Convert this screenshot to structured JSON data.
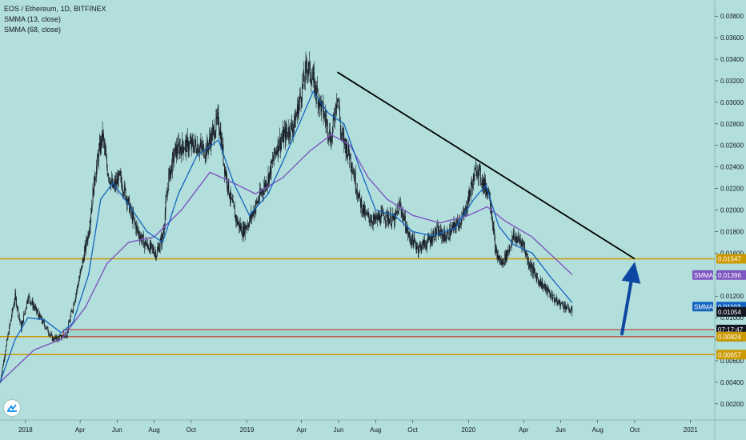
{
  "legend": {
    "title": "EOS / Ethereum, 1D, BITFINEX",
    "ind1": "SMMA (13, close)",
    "ind2": "SMMA (68, close)"
  },
  "colors": {
    "background": "#b2dfdb",
    "candle": "#131722",
    "smma_fast": "#1565c0",
    "smma_slow": "#7e57c2",
    "support": "#cc9900",
    "box_border": "#c62828",
    "trendline": "#000000",
    "arrow": "#0d47a1"
  },
  "chart_data": {
    "type": "candlestick",
    "symbol": "EOS / Ethereum",
    "interval": "1D",
    "exchange": "BITFINEX",
    "y_ticks": [
      "0.03800",
      "0.03600",
      "0.03400",
      "0.03200",
      "0.03000",
      "0.02800",
      "0.02600",
      "0.02400",
      "0.02200",
      "0.02000",
      "0.01800",
      "0.01600",
      "0.01400",
      "0.01200",
      "0.01000",
      "0.00800",
      "0.00600",
      "0.00400",
      "0.00200"
    ],
    "y_tick_values": [
      0.038,
      0.036,
      0.034,
      0.032,
      0.03,
      0.028,
      0.026,
      0.024,
      0.022,
      0.02,
      0.018,
      0.016,
      0.014,
      0.012,
      0.01,
      0.008,
      0.006,
      0.004,
      0.002
    ],
    "ylim": [
      0.0005,
      0.0395
    ],
    "x_ticks": [
      {
        "label": "2018",
        "date": "2018-01-01"
      },
      {
        "label": "Apr",
        "date": "2018-04-01"
      },
      {
        "label": "Jun",
        "date": "2018-06-01"
      },
      {
        "label": "Aug",
        "date": "2018-08-01"
      },
      {
        "label": "Oct",
        "date": "2018-10-01"
      },
      {
        "label": "2019",
        "date": "2019-01-01"
      },
      {
        "label": "Apr",
        "date": "2019-04-01"
      },
      {
        "label": "Jun",
        "date": "2019-06-01"
      },
      {
        "label": "Aug",
        "date": "2019-08-01"
      },
      {
        "label": "Oct",
        "date": "2019-10-01"
      },
      {
        "label": "2020",
        "date": "2020-01-01"
      },
      {
        "label": "Apr",
        "date": "2020-04-01"
      },
      {
        "label": "Jun",
        "date": "2020-06-01"
      },
      {
        "label": "Aug",
        "date": "2020-08-01"
      },
      {
        "label": "Oct",
        "date": "2020-10-01"
      },
      {
        "label": "2021",
        "date": "2021-01-01"
      }
    ],
    "xlim": [
      "2017-11-20",
      "2021-02-10"
    ],
    "price_path": [
      [
        "2017-11-20",
        0.004
      ],
      [
        "2017-12-05",
        0.009
      ],
      [
        "2017-12-15",
        0.012
      ],
      [
        "2017-12-25",
        0.009
      ],
      [
        "2018-01-05",
        0.012
      ],
      [
        "2018-01-15",
        0.011
      ],
      [
        "2018-01-25",
        0.01
      ],
      [
        "2018-02-05",
        0.009
      ],
      [
        "2018-02-15",
        0.008
      ],
      [
        "2018-03-01",
        0.0082
      ],
      [
        "2018-03-10",
        0.0085
      ],
      [
        "2018-03-20",
        0.011
      ],
      [
        "2018-04-01",
        0.014
      ],
      [
        "2018-04-15",
        0.018
      ],
      [
        "2018-04-25",
        0.023
      ],
      [
        "2018-05-01",
        0.025
      ],
      [
        "2018-05-08",
        0.027
      ],
      [
        "2018-05-15",
        0.024
      ],
      [
        "2018-05-25",
        0.022
      ],
      [
        "2018-06-05",
        0.023
      ],
      [
        "2018-06-15",
        0.0215
      ],
      [
        "2018-06-25",
        0.0195
      ],
      [
        "2018-07-05",
        0.018
      ],
      [
        "2018-07-15",
        0.017
      ],
      [
        "2018-07-25",
        0.0165
      ],
      [
        "2018-08-05",
        0.016
      ],
      [
        "2018-08-15",
        0.0175
      ],
      [
        "2018-08-25",
        0.023
      ],
      [
        "2018-09-05",
        0.0255
      ],
      [
        "2018-09-20",
        0.026
      ],
      [
        "2018-10-10",
        0.026
      ],
      [
        "2018-10-25",
        0.0255
      ],
      [
        "2018-11-05",
        0.027
      ],
      [
        "2018-11-15",
        0.0285
      ],
      [
        "2018-11-25",
        0.024
      ],
      [
        "2018-12-05",
        0.021
      ],
      [
        "2018-12-15",
        0.019
      ],
      [
        "2018-12-25",
        0.018
      ],
      [
        "2019-01-05",
        0.019
      ],
      [
        "2019-01-20",
        0.021
      ],
      [
        "2019-02-05",
        0.023
      ],
      [
        "2019-02-20",
        0.026
      ],
      [
        "2019-03-05",
        0.027
      ],
      [
        "2019-03-20",
        0.028
      ],
      [
        "2019-04-01",
        0.031
      ],
      [
        "2019-04-10",
        0.0335
      ],
      [
        "2019-04-20",
        0.032
      ],
      [
        "2019-05-01",
        0.03
      ],
      [
        "2019-05-10",
        0.0285
      ],
      [
        "2019-05-20",
        0.0265
      ],
      [
        "2019-05-30",
        0.031
      ],
      [
        "2019-06-05",
        0.027
      ],
      [
        "2019-06-20",
        0.025
      ],
      [
        "2019-07-05",
        0.021
      ],
      [
        "2019-07-15",
        0.0195
      ],
      [
        "2019-07-30",
        0.019
      ],
      [
        "2019-08-15",
        0.0195
      ],
      [
        "2019-09-01",
        0.019
      ],
      [
        "2019-09-10",
        0.0205
      ],
      [
        "2019-09-25",
        0.0175
      ],
      [
        "2019-10-10",
        0.0165
      ],
      [
        "2019-10-25",
        0.017
      ],
      [
        "2019-11-10",
        0.018
      ],
      [
        "2019-11-25",
        0.0175
      ],
      [
        "2019-12-10",
        0.0185
      ],
      [
        "2019-12-25",
        0.0195
      ],
      [
        "2020-01-05",
        0.022
      ],
      [
        "2020-01-15",
        0.024
      ],
      [
        "2020-01-25",
        0.0225
      ],
      [
        "2020-02-05",
        0.0215
      ],
      [
        "2020-02-15",
        0.016
      ],
      [
        "2020-02-25",
        0.015
      ],
      [
        "2020-03-05",
        0.016
      ],
      [
        "2020-03-15",
        0.0175
      ],
      [
        "2020-03-30",
        0.017
      ],
      [
        "2020-04-10",
        0.015
      ],
      [
        "2020-04-25",
        0.0135
      ],
      [
        "2020-05-10",
        0.0125
      ],
      [
        "2020-05-25",
        0.0115
      ],
      [
        "2020-06-10",
        0.011
      ],
      [
        "2020-06-20",
        0.0105
      ]
    ],
    "smma_fast_path": [
      [
        "2017-11-20",
        0.004
      ],
      [
        "2017-12-15",
        0.008
      ],
      [
        "2018-01-05",
        0.01
      ],
      [
        "2018-02-01",
        0.0098
      ],
      [
        "2018-03-01",
        0.0086
      ],
      [
        "2018-03-20",
        0.0095
      ],
      [
        "2018-04-15",
        0.014
      ],
      [
        "2018-05-05",
        0.021
      ],
      [
        "2018-05-25",
        0.0225
      ],
      [
        "2018-06-20",
        0.0205
      ],
      [
        "2018-07-20",
        0.018
      ],
      [
        "2018-08-15",
        0.017
      ],
      [
        "2018-09-10",
        0.0215
      ],
      [
        "2018-10-10",
        0.025
      ],
      [
        "2018-11-15",
        0.0265
      ],
      [
        "2018-12-10",
        0.0225
      ],
      [
        "2019-01-05",
        0.0195
      ],
      [
        "2019-02-05",
        0.0215
      ],
      [
        "2019-03-05",
        0.025
      ],
      [
        "2019-04-01",
        0.0285
      ],
      [
        "2019-04-20",
        0.031
      ],
      [
        "2019-05-15",
        0.029
      ],
      [
        "2019-06-10",
        0.028
      ],
      [
        "2019-07-05",
        0.024
      ],
      [
        "2019-08-01",
        0.02
      ],
      [
        "2019-09-01",
        0.0195
      ],
      [
        "2019-10-01",
        0.018
      ],
      [
        "2019-11-01",
        0.0176
      ],
      [
        "2019-12-10",
        0.0183
      ],
      [
        "2020-01-10",
        0.021
      ],
      [
        "2020-01-30",
        0.0223
      ],
      [
        "2020-02-20",
        0.0185
      ],
      [
        "2020-03-15",
        0.0168
      ],
      [
        "2020-04-15",
        0.016
      ],
      [
        "2020-05-15",
        0.0138
      ],
      [
        "2020-06-20",
        0.0114
      ]
    ],
    "smma_slow_path": [
      [
        "2017-11-20",
        0.004
      ],
      [
        "2018-01-15",
        0.007
      ],
      [
        "2018-03-01",
        0.008
      ],
      [
        "2018-04-10",
        0.011
      ],
      [
        "2018-05-15",
        0.015
      ],
      [
        "2018-06-20",
        0.017
      ],
      [
        "2018-08-01",
        0.0175
      ],
      [
        "2018-09-15",
        0.02
      ],
      [
        "2018-11-01",
        0.0235
      ],
      [
        "2018-12-10",
        0.0225
      ],
      [
        "2019-01-15",
        0.0215
      ],
      [
        "2019-03-01",
        0.023
      ],
      [
        "2019-04-15",
        0.0255
      ],
      [
        "2019-05-20",
        0.027
      ],
      [
        "2019-06-20",
        0.026
      ],
      [
        "2019-07-20",
        0.023
      ],
      [
        "2019-08-20",
        0.021
      ],
      [
        "2019-10-01",
        0.0195
      ],
      [
        "2019-11-15",
        0.0188
      ],
      [
        "2020-01-01",
        0.0195
      ],
      [
        "2020-02-01",
        0.0203
      ],
      [
        "2020-03-01",
        0.019
      ],
      [
        "2020-04-15",
        0.0175
      ],
      [
        "2020-06-20",
        0.014
      ]
    ],
    "horizontal_levels": [
      0.01547,
      0.00824,
      0.00657
    ],
    "box_zone": {
      "from": "2018-03-05",
      "to": "2021-02-10",
      "low": 0.00824,
      "high": 0.0089
    },
    "trendline": {
      "from": [
        "2019-05-30",
        0.0328
      ],
      "to": [
        "2020-10-01",
        0.01547
      ]
    },
    "projection_arrow": {
      "from": [
        "2020-09-10",
        0.0085
      ],
      "to": [
        "2020-10-01",
        0.0152
      ]
    },
    "price_tags": [
      {
        "value": 0.01547,
        "label": "0.01547",
        "bg": "#cc9900",
        "fg": "#ffffff",
        "prefix": ""
      },
      {
        "value": 0.01396,
        "label": "0.01396",
        "bg": "#7e57c2",
        "fg": "#ffffff",
        "prefix": "SMMA"
      },
      {
        "value": 0.01103,
        "label": "0.01103",
        "bg": "#1565c0",
        "fg": "#ffffff",
        "prefix": "SMMA"
      },
      {
        "value": 0.01054,
        "label": "0.01054",
        "bg": "#131722",
        "fg": "#ffffff",
        "prefix": ""
      },
      {
        "value": 0.0089,
        "label": "07:17:47",
        "bg": "#131722",
        "fg": "#ffffff",
        "prefix": ""
      },
      {
        "value": 0.00824,
        "label": "0.00824",
        "bg": "#cc9900",
        "fg": "#ffffff",
        "prefix": ""
      },
      {
        "value": 0.00657,
        "label": "0.00657",
        "bg": "#cc9900",
        "fg": "#ffffff",
        "prefix": ""
      }
    ]
  }
}
